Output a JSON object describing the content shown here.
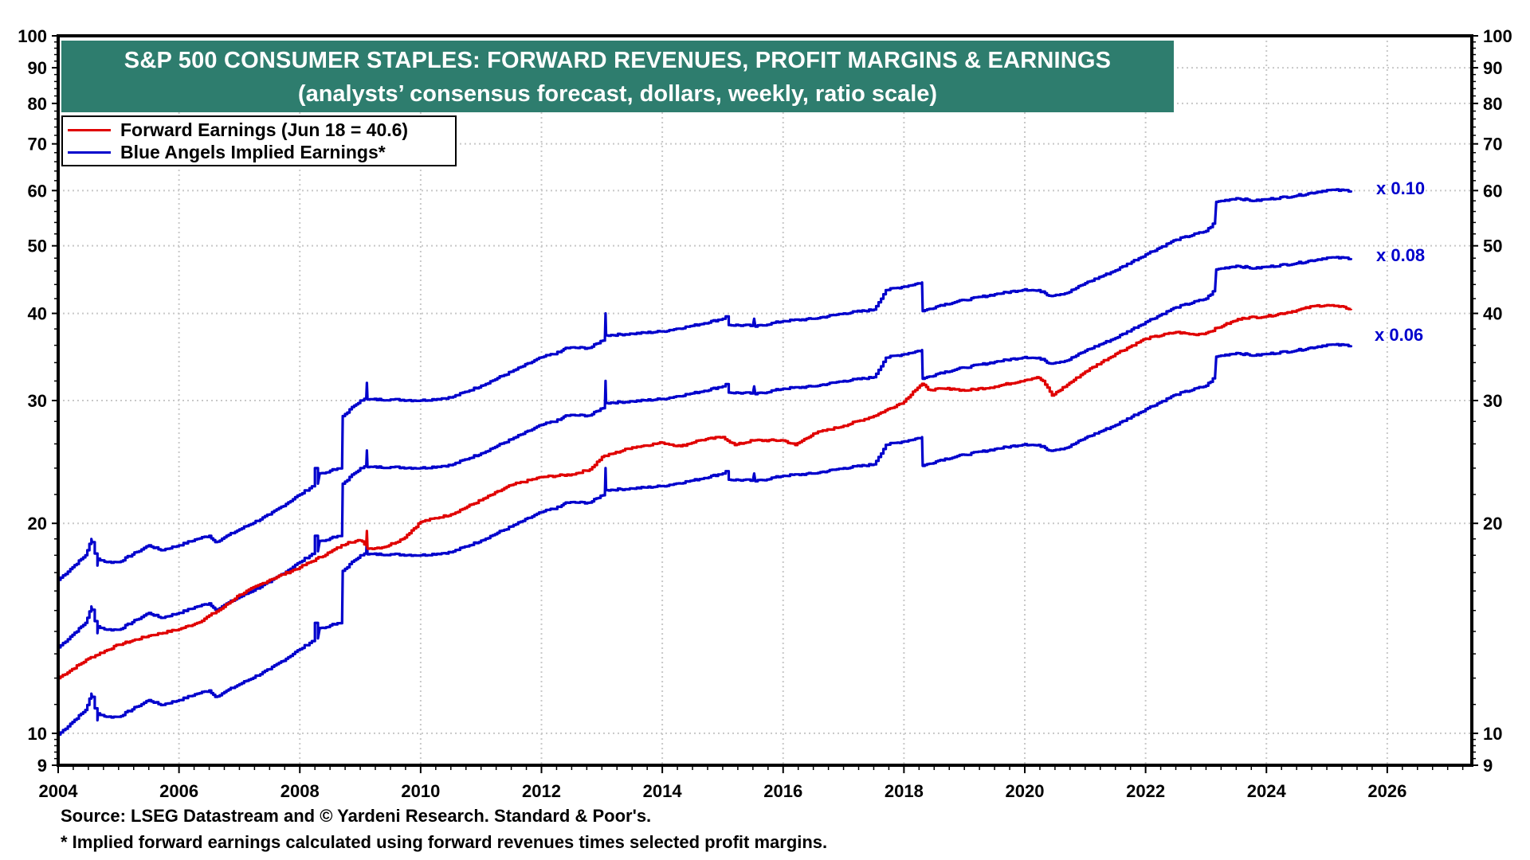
{
  "chart_data": {
    "type": "line",
    "title": "S&P 500 CONSUMER STAPLES: FORWARD REVENUES, PROFIT MARGINS & EARNINGS",
    "subtitle": "(analysts’ consensus forecast, dollars, weekly, ratio scale)",
    "xlabel": "",
    "ylabel": "",
    "y_scale": "log",
    "ylim": [
      9,
      100
    ],
    "xlim": [
      2004,
      2027.4
    ],
    "x_ticks": [
      "2004",
      "2006",
      "2008",
      "2010",
      "2012",
      "2014",
      "2016",
      "2018",
      "2020",
      "2022",
      "2024",
      "2026"
    ],
    "y_ticks": [
      "9",
      "10",
      "20",
      "30",
      "40",
      "50",
      "60",
      "70",
      "80",
      "90",
      "100"
    ],
    "y_ticks_right": [
      "9",
      "10",
      "20",
      "30",
      "40",
      "50",
      "60",
      "70",
      "80",
      "90",
      "100"
    ],
    "grid": true,
    "legend_position": "top-left",
    "legend": [
      {
        "name": "Forward Earnings (Jun 18 = 40.6)",
        "color": "#E00000"
      },
      {
        "name": "Blue Angels Implied Earnings*",
        "color": "#0000CC"
      }
    ],
    "forward_revenues_basis": {
      "note": "Implied earnings = forward revenues per share x profit margin",
      "x": [
        2004.0,
        2004.2,
        2004.45,
        2004.55,
        2004.56,
        2004.65,
        2004.66,
        2004.8,
        2005.0,
        2005.3,
        2005.5,
        2005.7,
        2006.0,
        2006.3,
        2006.5,
        2006.6,
        2006.75,
        2007.0,
        2007.5,
        2008.0,
        2008.2,
        2008.25,
        2008.3,
        2008.33,
        2008.4,
        2008.5,
        2008.7,
        2008.71,
        2008.9,
        2009.0,
        2009.1,
        2009.11,
        2009.12,
        2009.5,
        2010.0,
        2010.5,
        2011.0,
        2011.5,
        2012.0,
        2012.3,
        2012.4,
        2012.8,
        2013.05,
        2013.06,
        2013.07,
        2013.5,
        2014.0,
        2014.5,
        2015.0,
        2015.05,
        2015.1,
        2015.5,
        2015.52,
        2015.54,
        2016.0,
        2016.5,
        2017.0,
        2017.5,
        2017.7,
        2018.0,
        2018.3,
        2018.31,
        2018.6,
        2019.0,
        2019.5,
        2020.0,
        2020.3,
        2020.4,
        2020.7,
        2021.0,
        2021.5,
        2022.0,
        2022.5,
        2023.0,
        2023.15,
        2023.17,
        2023.5,
        2023.8,
        2024.0,
        2024.5,
        2025.0,
        2025.4
      ],
      "values": [
        166,
        172,
        180,
        190,
        188,
        174,
        178,
        176,
        176,
        182,
        186,
        183,
        186,
        190,
        192,
        188,
        191,
        196,
        206,
        220,
        226,
        240,
        228,
        236,
        236,
        238,
        240,
        285,
        295,
        300,
        302,
        318,
        301,
        301,
        300,
        303,
        315,
        330,
        346,
        352,
        357,
        357,
        368,
        400,
        372,
        374,
        377,
        384,
        393,
        396,
        385,
        384,
        393,
        383,
        390,
        393,
        400,
        405,
        432,
        437,
        443,
        403,
        411,
        418,
        426,
        433,
        430,
        424,
        428,
        442,
        461,
        486,
        510,
        525,
        541,
        578,
        585,
        580,
        583,
        590,
        601,
        600
      ]
    },
    "series": [
      {
        "name": "Forward Earnings",
        "color": "#E00000",
        "x": [
          2004.0,
          2004.5,
          2005.0,
          2005.5,
          2006.0,
          2006.3,
          2006.7,
          2007.0,
          2007.5,
          2008.0,
          2008.5,
          2008.8,
          2009.0,
          2009.1,
          2009.11,
          2009.12,
          2009.4,
          2009.7,
          2010.0,
          2010.5,
          2011.0,
          2011.5,
          2012.0,
          2012.5,
          2012.8,
          2013.0,
          2013.5,
          2014.0,
          2014.3,
          2014.6,
          2015.0,
          2015.2,
          2015.5,
          2016.0,
          2016.2,
          2016.5,
          2017.0,
          2017.5,
          2018.0,
          2018.15,
          2018.3,
          2018.4,
          2018.8,
          2019.0,
          2019.5,
          2020.0,
          2020.2,
          2020.3,
          2020.45,
          2020.7,
          2021.0,
          2021.5,
          2022.0,
          2022.5,
          2022.8,
          2023.0,
          2023.3,
          2023.6,
          2024.0,
          2024.5,
          2024.8,
          2025.0,
          2025.2,
          2025.4
        ],
        "values": [
          12.0,
          12.8,
          13.4,
          13.8,
          14.1,
          14.4,
          15.1,
          15.8,
          16.6,
          17.3,
          18.2,
          18.8,
          18.9,
          18.6,
          19.5,
          18.4,
          18.5,
          19.0,
          20.1,
          20.6,
          21.6,
          22.7,
          23.3,
          23.5,
          23.9,
          24.9,
          25.7,
          26.1,
          25.8,
          26.3,
          26.6,
          25.9,
          26.3,
          26.3,
          25.9,
          26.9,
          27.6,
          28.5,
          29.9,
          30.9,
          31.7,
          31.1,
          31.2,
          31.0,
          31.4,
          32.1,
          32.4,
          32.0,
          30.5,
          31.6,
          33.0,
          35.0,
          36.8,
          37.6,
          37.3,
          37.5,
          38.5,
          39.4,
          39.6,
          40.4,
          41.0,
          41.1,
          40.9,
          40.6
        ]
      },
      {
        "name": "Blue Angels Implied Earnings x 0.10",
        "color": "#0000CC",
        "multiplier": 0.1,
        "label": "x 0.10",
        "end_value": 60.0
      },
      {
        "name": "Blue Angels Implied Earnings x 0.08",
        "color": "#0000CC",
        "multiplier": 0.08,
        "label": "x 0.08",
        "end_value": 48.0
      },
      {
        "name": "Blue Angels Implied Earnings x 0.06",
        "color": "#0000CC",
        "multiplier": 0.06,
        "label": "x 0.06",
        "end_value": 36.0
      }
    ]
  },
  "text": {
    "title_line1": "S&P 500 CONSUMER STAPLES: FORWARD REVENUES, PROFIT MARGINS & EARNINGS",
    "title_line2": "(analysts’ consensus forecast, dollars, weekly, ratio scale)",
    "legend_1": "Forward Earnings (Jun 18 = 40.6)",
    "legend_2": "Blue Angels Implied Earnings*",
    "mult_010": "x 0.10",
    "mult_008": "x 0.08",
    "mult_006": "x 0.06",
    "source": "Source: LSEG Datastream and © Yardeni Research. Standard & Poor's.",
    "footnote": "* Implied forward earnings calculated using forward revenues times selected profit margins."
  },
  "colors": {
    "title_bg": "#2E7D6E",
    "forward_earnings": "#E00000",
    "implied_earnings": "#0000CC",
    "grid": "#C8C8C8"
  }
}
